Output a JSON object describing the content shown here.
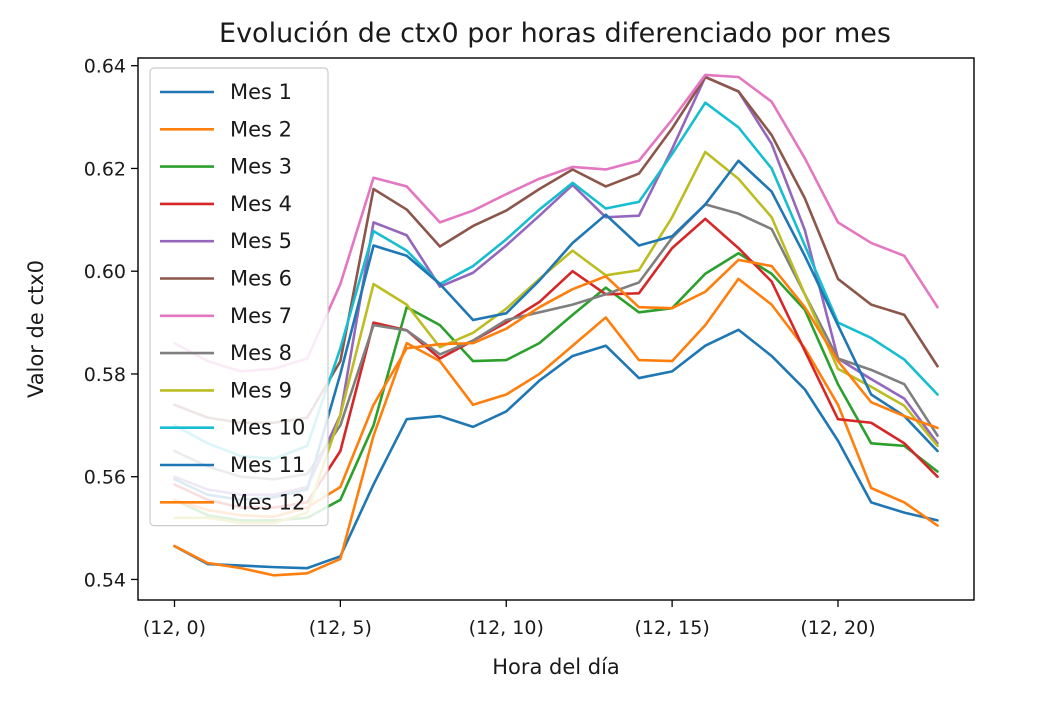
{
  "chart_data": {
    "type": "line",
    "title": "Evolución de ctx0 por horas diferenciado por mes",
    "xlabel": "Hora del día",
    "ylabel": "Valor de ctx0",
    "x": [
      0,
      1,
      2,
      3,
      4,
      5,
      6,
      7,
      8,
      9,
      10,
      11,
      12,
      13,
      14,
      15,
      16,
      17,
      18,
      19,
      20,
      21,
      22,
      23
    ],
    "xtick_values": [
      0,
      5,
      10,
      15,
      20
    ],
    "xtick_labels": [
      "(12, 0)",
      "(12, 5)",
      "(12, 10)",
      "(12, 15)",
      "(12, 20)"
    ],
    "ylim": [
      0.536,
      0.6415
    ],
    "xlim": [
      -1.1,
      24.1
    ],
    "ytick_values": [
      0.54,
      0.56,
      0.58,
      0.6,
      0.62,
      0.64
    ],
    "ytick_labels": [
      "0.54",
      "0.56",
      "0.58",
      "0.60",
      "0.62",
      "0.64"
    ],
    "grid": false,
    "legend_position": "upper-left",
    "series": [
      {
        "name": "Mes 1",
        "color": "#1f77b4",
        "values": [
          0.5465,
          0.543,
          0.5427,
          0.5424,
          0.5422,
          0.5445,
          0.5585,
          0.5712,
          0.5718,
          0.5697,
          0.5727,
          0.5787,
          0.5835,
          0.5855,
          0.5792,
          0.5805,
          0.5855,
          0.5886,
          0.5835,
          0.577,
          0.567,
          0.555,
          0.553,
          0.5515
        ]
      },
      {
        "name": "Mes 2",
        "color": "#ff7f0e",
        "values": [
          0.5465,
          0.5432,
          0.5422,
          0.5408,
          0.5412,
          0.544,
          0.568,
          0.586,
          0.5825,
          0.574,
          0.576,
          0.58,
          0.5855,
          0.591,
          0.5827,
          0.5825,
          0.5895,
          0.5985,
          0.5935,
          0.585,
          0.574,
          0.5578,
          0.555,
          0.5505
        ]
      },
      {
        "name": "Mes 3",
        "color": "#2ca02c",
        "values": [
          0.5555,
          0.5525,
          0.5515,
          0.5515,
          0.552,
          0.5555,
          0.57,
          0.593,
          0.5895,
          0.5825,
          0.5827,
          0.586,
          0.5915,
          0.5968,
          0.592,
          0.5928,
          0.5995,
          0.6035,
          0.5995,
          0.5925,
          0.578,
          0.5665,
          0.566,
          0.561
        ]
      },
      {
        "name": "Mes 4",
        "color": "#d62728",
        "values": [
          0.5585,
          0.5555,
          0.554,
          0.554,
          0.555,
          0.565,
          0.59,
          0.5885,
          0.583,
          0.5865,
          0.59,
          0.594,
          0.6,
          0.5955,
          0.5957,
          0.6045,
          0.6102,
          0.6045,
          0.598,
          0.5845,
          0.5712,
          0.5705,
          0.5665,
          0.56
        ]
      },
      {
        "name": "Mes 5",
        "color": "#9467bd",
        "values": [
          0.56,
          0.5575,
          0.5565,
          0.5565,
          0.558,
          0.572,
          0.6095,
          0.607,
          0.597,
          0.5997,
          0.605,
          0.6108,
          0.6168,
          0.6105,
          0.6108,
          0.6238,
          0.6378,
          0.635,
          0.6248,
          0.608,
          0.583,
          0.579,
          0.5752,
          0.5665
        ]
      },
      {
        "name": "Mes 6",
        "color": "#8c564b",
        "values": [
          0.574,
          0.5715,
          0.5705,
          0.5705,
          0.5715,
          0.5825,
          0.616,
          0.612,
          0.6048,
          0.6088,
          0.6118,
          0.616,
          0.6198,
          0.6165,
          0.619,
          0.6278,
          0.6378,
          0.635,
          0.6265,
          0.6142,
          0.5985,
          0.5935,
          0.5915,
          0.5815
        ]
      },
      {
        "name": "Mes 7",
        "color": "#e377c2",
        "values": [
          0.586,
          0.5825,
          0.5805,
          0.581,
          0.583,
          0.5975,
          0.6182,
          0.6165,
          0.6095,
          0.6118,
          0.615,
          0.618,
          0.6203,
          0.6198,
          0.6215,
          0.6295,
          0.6382,
          0.6378,
          0.633,
          0.622,
          0.6095,
          0.6055,
          0.603,
          0.593
        ]
      },
      {
        "name": "Mes 8",
        "color": "#7f7f7f",
        "values": [
          0.565,
          0.562,
          0.56,
          0.5595,
          0.5605,
          0.57,
          0.5895,
          0.5885,
          0.5838,
          0.5865,
          0.5905,
          0.592,
          0.5935,
          0.5955,
          0.5978,
          0.6065,
          0.613,
          0.6112,
          0.6082,
          0.5955,
          0.583,
          0.5808,
          0.578,
          0.568
        ]
      },
      {
        "name": "Mes 9",
        "color": "#bcbd22",
        "values": [
          0.552,
          0.552,
          0.551,
          0.551,
          0.553,
          0.572,
          0.5975,
          0.5935,
          0.5852,
          0.588,
          0.5927,
          0.5985,
          0.604,
          0.5992,
          0.6002,
          0.6105,
          0.6232,
          0.618,
          0.6105,
          0.5955,
          0.581,
          0.5775,
          0.5738,
          0.566
        ]
      },
      {
        "name": "Mes 10",
        "color": "#17becf",
        "values": [
          0.57,
          0.5665,
          0.564,
          0.5635,
          0.566,
          0.585,
          0.6078,
          0.604,
          0.5975,
          0.601,
          0.6062,
          0.612,
          0.6172,
          0.6122,
          0.6135,
          0.6228,
          0.6328,
          0.628,
          0.62,
          0.605,
          0.59,
          0.587,
          0.5828,
          0.576
        ]
      },
      {
        "name": "Mes 11",
        "color": "#1f77b4",
        "values": [
          0.5595,
          0.5565,
          0.5555,
          0.556,
          0.5575,
          0.58,
          0.605,
          0.603,
          0.5975,
          0.5905,
          0.5918,
          0.5982,
          0.6055,
          0.611,
          0.605,
          0.6068,
          0.613,
          0.6215,
          0.6155,
          0.603,
          0.5895,
          0.576,
          0.5718,
          0.565
        ]
      },
      {
        "name": "Mes 12",
        "color": "#ff7f0e",
        "values": [
          0.5555,
          0.5535,
          0.5525,
          0.5522,
          0.554,
          0.558,
          0.574,
          0.585,
          0.5858,
          0.586,
          0.5888,
          0.593,
          0.5965,
          0.599,
          0.593,
          0.5928,
          0.596,
          0.6022,
          0.601,
          0.593,
          0.5825,
          0.5745,
          0.5718,
          0.5695
        ]
      }
    ]
  }
}
